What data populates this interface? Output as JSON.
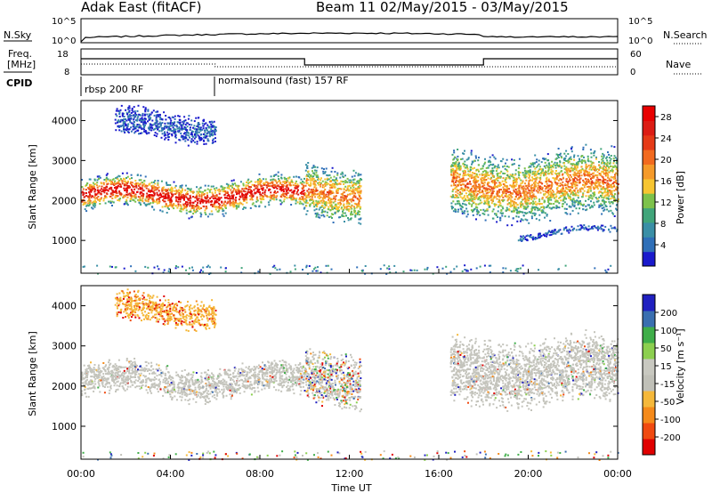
{
  "header": {
    "station": "Adak East (fitACF)",
    "beam_info": "Beam 11 02/May/2015 - 03/May/2015"
  },
  "strips": {
    "nsky_label": "N.Sky",
    "nsky_ticks": [
      "10^5",
      "10^0"
    ],
    "nsearch_label": "N.Search",
    "nsearch_ticks": [
      "10^5",
      "10^0"
    ],
    "freq_label_line1": "Freq.",
    "freq_label_line2": "[MHz]",
    "freq_ticks": [
      "18",
      "8"
    ],
    "nave_label": "Nave",
    "nave_ticks": [
      "60",
      "0"
    ],
    "cpid_label": "CPID",
    "cpid_segments": [
      {
        "name": "rbsp 200 RF",
        "start_hour": 0,
        "end_hour": 6
      },
      {
        "name": "normalsound (fast) 157 RF",
        "start_hour": 6,
        "end_hour": 24
      }
    ]
  },
  "colors": {
    "power_scale": [
      "#1a1acc",
      "#2f6fb8",
      "#3a8fa6",
      "#41a57a",
      "#7dc24b",
      "#f7c531",
      "#f59a2a",
      "#f26a1f",
      "#e53a17",
      "#dc1c14",
      "#e80000"
    ],
    "velocity_scale": [
      "#e00000",
      "#f04a10",
      "#f58a1a",
      "#f5b83a",
      "#c0c0b8",
      "#c8c8c0",
      "#8ccf4f",
      "#3fae49",
      "#3a6fb0",
      "#2020c0"
    ]
  },
  "chart_data": [
    {
      "type": "heatmap",
      "panel": "power",
      "ylabel": "Slant Range [km]",
      "xlabel": "",
      "x_ticks": [
        "00:00",
        "04:00",
        "08:00",
        "12:00",
        "16:00",
        "20:00",
        "00:00"
      ],
      "x_range_hours": [
        0,
        24
      ],
      "ylim": [
        180,
        4500
      ],
      "y_ticks": [
        1000,
        2000,
        3000,
        4000
      ],
      "colorbar_label": "Power [dB]",
      "colorbar_ticks": [
        4,
        8,
        12,
        16,
        20,
        24,
        28
      ],
      "colorbar_range": [
        0,
        30
      ],
      "features": [
        {
          "desc_hours": [
            0,
            10
          ],
          "range_km": [
            1700,
            2600
          ],
          "level": "high"
        },
        {
          "desc_hours": [
            1.5,
            6
          ],
          "range_km": [
            3500,
            4300
          ],
          "level": "low"
        },
        {
          "desc_hours": [
            10,
            12.5
          ],
          "range_km": [
            1500,
            3000
          ],
          "level": "mid"
        },
        {
          "desc_hours": [
            16.5,
            24
          ],
          "range_km": [
            1500,
            3300
          ],
          "level": "mid"
        },
        {
          "desc_hours": [
            19.5,
            24
          ],
          "range_km": [
            1100,
            1300
          ],
          "level": "low"
        }
      ]
    },
    {
      "type": "heatmap",
      "panel": "velocity",
      "ylabel": "Slant Range [km]",
      "xlabel": "Time UT",
      "x_ticks": [
        "00:00",
        "04:00",
        "08:00",
        "12:00",
        "16:00",
        "20:00",
        "00:00"
      ],
      "x_range_hours": [
        0,
        24
      ],
      "ylim": [
        180,
        4500
      ],
      "y_ticks": [
        1000,
        2000,
        3000,
        4000
      ],
      "colorbar_label": "Velocity [m s⁻¹]",
      "colorbar_ticks": [
        200,
        100,
        50,
        15,
        -15,
        -50,
        -100,
        -200
      ],
      "features": [
        {
          "desc_hours": [
            0,
            10
          ],
          "range_km": [
            1700,
            2600
          ],
          "level": "gs"
        },
        {
          "desc_hours": [
            1.5,
            6
          ],
          "range_km": [
            3500,
            4300
          ],
          "level": "neg"
        },
        {
          "desc_hours": [
            10,
            12.5
          ],
          "range_km": [
            1500,
            3000
          ],
          "level": "mix"
        },
        {
          "desc_hours": [
            16.5,
            24
          ],
          "range_km": [
            1500,
            3300
          ],
          "level": "gs"
        }
      ]
    }
  ]
}
